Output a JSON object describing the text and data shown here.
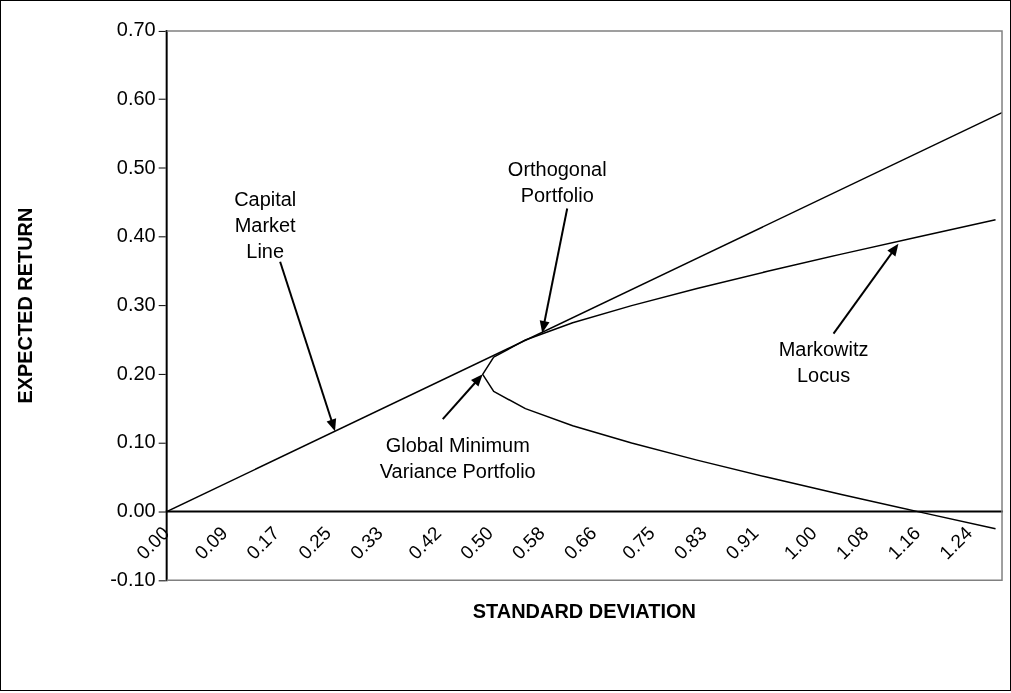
{
  "chart_data": {
    "type": "line",
    "xlabel": "STANDARD DEVIATION",
    "ylabel": "EXPECTED RETURN",
    "xlim": [
      0,
      1.29
    ],
    "ylim": [
      -0.1,
      0.7
    ],
    "xticks": [
      {
        "value": 0,
        "label": "0.00"
      },
      0.09,
      0.17,
      0.25,
      0.33,
      0.42,
      {
        "value": 0.5,
        "label": "0.50"
      },
      0.58,
      0.66,
      0.75,
      0.83,
      0.91,
      {
        "value": 1,
        "label": "1.00"
      },
      1.08,
      1.16,
      1.24
    ],
    "yticks": [
      {
        "value": -0.1,
        "label": "-0.10"
      },
      {
        "value": 0,
        "label": "0.00"
      },
      {
        "value": 0.1,
        "label": "0.10"
      },
      {
        "value": 0.2,
        "label": "0.20"
      },
      {
        "value": 0.3,
        "label": "0.30"
      },
      {
        "value": 0.4,
        "label": "0.40"
      },
      {
        "value": 0.5,
        "label": "0.50"
      },
      {
        "value": 0.6,
        "label": "0.60"
      },
      {
        "value": 0.7,
        "label": "0.70"
      }
    ],
    "series": [
      {
        "color": "#000000",
        "x": [
          0,
          1.29
        ],
        "values": [
          0,
          0.581
        ]
      },
      {
        "color": "#000000",
        "x": [
          1.28,
          1.16,
          1.042,
          0.928,
          0.819,
          0.718,
          0.627,
          0.554,
          0.505,
          0.488,
          0.505,
          0.554,
          0.627,
          0.718,
          0.819,
          0.928,
          1.042,
          1.16,
          1.28
        ],
        "values": [
          0.425,
          0.4,
          0.375,
          0.35,
          0.325,
          0.3,
          0.275,
          0.25,
          0.225,
          0.2,
          0.175,
          0.15,
          0.125,
          0.1,
          0.075,
          0.05,
          0.025,
          0,
          -0.025
        ]
      }
    ],
    "annotations": [
      {
        "text": "Capital\nMarket\nLine",
        "x": 0.26,
        "y": 0.117
      },
      {
        "text": "Orthogonal\nPortfolio",
        "x": 0.58,
        "y": 0.26
      },
      {
        "text": "Global Minimum\nVariance Portfolio",
        "x": 0.488,
        "y": 0.2
      },
      {
        "text": "Markowitz\nLocus",
        "x": 1.13,
        "y": 0.39
      }
    ],
    "grid": false,
    "legend": false,
    "marker": "none",
    "line_style": "solid"
  }
}
